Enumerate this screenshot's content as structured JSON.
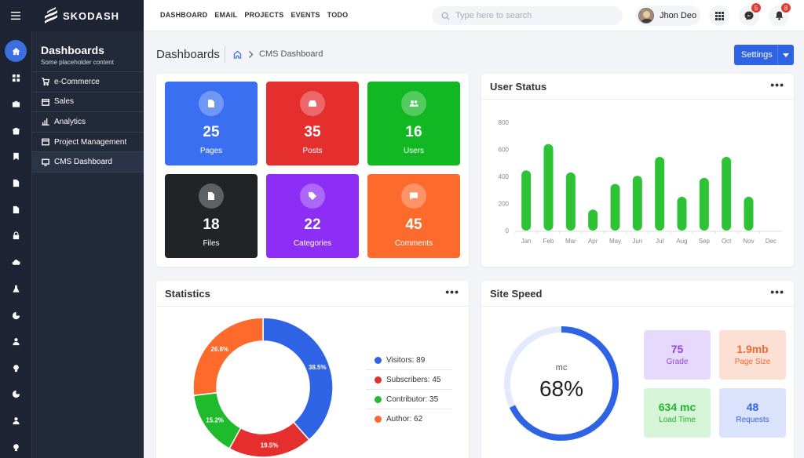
{
  "brand": {
    "name": "SKODASH"
  },
  "topnav": [
    "DASHBOARD",
    "EMAIL",
    "PROJECTS",
    "EVENTS",
    "TODO"
  ],
  "search": {
    "placeholder": "Type here to search"
  },
  "user": {
    "name": "Jhon Deo"
  },
  "notifications": {
    "messages": "5",
    "alerts": "8"
  },
  "rail_icons": [
    "home-icon",
    "apps-icon",
    "briefcase-icon",
    "bag-icon",
    "bookmark-icon",
    "file-icon",
    "document-icon",
    "lock-icon",
    "cloud-upload-icon",
    "flask-icon",
    "pie-chart-icon",
    "person-icon",
    "bulb-icon",
    "pie-chart-icon",
    "person-icon",
    "bulb-icon"
  ],
  "sidemenu": {
    "title": "Dashboards",
    "subtitle": "Some placeholder content",
    "items": [
      {
        "label": "e-Commerce",
        "icon": "cart-icon"
      },
      {
        "label": "Sales",
        "icon": "calendar-icon"
      },
      {
        "label": "Analytics",
        "icon": "bar-chart-icon"
      },
      {
        "label": "Project Management",
        "icon": "window-icon"
      },
      {
        "label": "CMS Dashboard",
        "icon": "monitor-icon"
      }
    ]
  },
  "breadcrumb": {
    "title": "Dashboards",
    "current": "CMS Dashboard"
  },
  "settings_label": "Settings",
  "tiles": [
    {
      "value": "25",
      "label": "Pages",
      "color": "#3b6ff2",
      "icon": "page-icon"
    },
    {
      "value": "35",
      "label": "Posts",
      "color": "#e52e2e",
      "icon": "inbox-icon"
    },
    {
      "value": "16",
      "label": "Users",
      "color": "#12b824",
      "icon": "users-icon"
    },
    {
      "value": "18",
      "label": "Files",
      "color": "#212427",
      "icon": "file-icon"
    },
    {
      "value": "22",
      "label": "Categories",
      "color": "#8c2ef5",
      "icon": "tag-icon"
    },
    {
      "value": "45",
      "label": "Comments",
      "color": "#fc6a2c",
      "icon": "comment-icon"
    }
  ],
  "user_status": {
    "title": "User Status",
    "chart_data": {
      "type": "bar",
      "categories": [
        "Jan",
        "Feb",
        "Mar",
        "Apr",
        "May",
        "Jun",
        "Jul",
        "Aug",
        "Sep",
        "Oct",
        "Nov",
        "Dec"
      ],
      "values": [
        445,
        640,
        430,
        155,
        345,
        405,
        545,
        250,
        390,
        545,
        250,
        0
      ],
      "ylim": [
        0,
        800
      ],
      "yticks": [
        "0",
        "200",
        "400",
        "600",
        "800"
      ],
      "color": "#2ec335",
      "grid": false
    }
  },
  "statistics": {
    "title": "Statistics",
    "chart_data": {
      "type": "pie",
      "labels": [
        "Visitors",
        "Subscribers",
        "Contributor",
        "Author"
      ],
      "values": [
        89,
        45,
        35,
        62
      ],
      "percent_labels": [
        "38.5%",
        "19.5%",
        "15.2%",
        "26.8%"
      ],
      "colors": [
        "#2f63e6",
        "#e52e2e",
        "#1fbb2c",
        "#fc6a2c"
      ],
      "legend": "right"
    },
    "legend": [
      "Visitors: 89",
      "Subscribers: 45",
      "Contributor: 35",
      "Author: 62"
    ]
  },
  "site_speed": {
    "title": "Site Speed",
    "gauge": {
      "unit": "mc",
      "value": "68%",
      "fraction": 0.68
    },
    "boxes": [
      {
        "value": "75",
        "label": "Grade",
        "bg": "#e6d9fb",
        "fg": "#8e44e8"
      },
      {
        "value": "1.9mb",
        "label": "Page Size",
        "bg": "#fde0d4",
        "fg": "#f06a33"
      },
      {
        "value": "634 mc",
        "label": "Load Time",
        "bg": "#d6f5d8",
        "fg": "#1fb52c"
      },
      {
        "value": "48",
        "label": "Requests",
        "bg": "#dae3fb",
        "fg": "#2f63e6"
      }
    ]
  }
}
